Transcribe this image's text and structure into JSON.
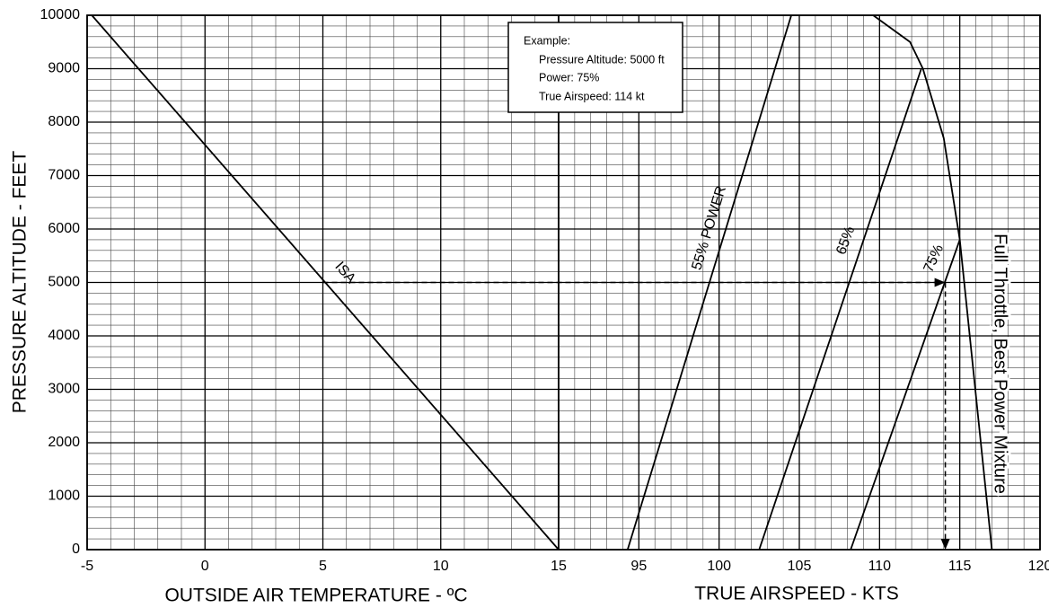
{
  "chart_data": {
    "type": "line",
    "ylabel": "PRESSURE ALTITUDE - FEET",
    "xlabel": "OUTSIDE AIR TEMPERATURE - ºC",
    "x2label": "TRUE AIRSPEED - KTS",
    "ylim": [
      0,
      10000
    ],
    "yticks": [
      0,
      1000,
      2000,
      3000,
      4000,
      5000,
      6000,
      7000,
      8000,
      9000,
      10000
    ],
    "xlim": [
      -5,
      15
    ],
    "xticks": [
      -5,
      0,
      5,
      10,
      15
    ],
    "x2lim": [
      90,
      120
    ],
    "x2ticks": [
      95,
      100,
      105,
      110,
      115,
      120
    ],
    "grid": true,
    "minor_grid": true,
    "color": "#000000",
    "series": [
      {
        "name": "ISA",
        "axis": "x",
        "x": [
          -4.8,
          15
        ],
        "values": [
          10000,
          0
        ]
      },
      {
        "name": "55% POWER",
        "axis": "x2",
        "x": [
          94.3,
          104.5
        ],
        "values": [
          0,
          10000
        ]
      },
      {
        "name": "65%",
        "axis": "x2",
        "x": [
          102.5,
          112.6
        ],
        "values": [
          0,
          9000
        ]
      },
      {
        "name": "75%",
        "axis": "x2",
        "x": [
          108.2,
          115.0
        ],
        "values": [
          0,
          5800
        ]
      },
      {
        "name": "Full Throttle, Best Power Mixture",
        "axis": "x2",
        "x": [
          109.6,
          111.9,
          112.7,
          114.0,
          115.0,
          117.0
        ],
        "values": [
          10000,
          9500,
          9000,
          7700,
          5800,
          0
        ]
      }
    ],
    "example_box": {
      "title": "Example:",
      "lines": [
        "Pressure Altitude: 5000 ft",
        "Power: 75%",
        "True Airspeed: 114 kt"
      ]
    },
    "example_path": {
      "oat": 5,
      "altitude": 5000,
      "tas": 114.1
    }
  }
}
